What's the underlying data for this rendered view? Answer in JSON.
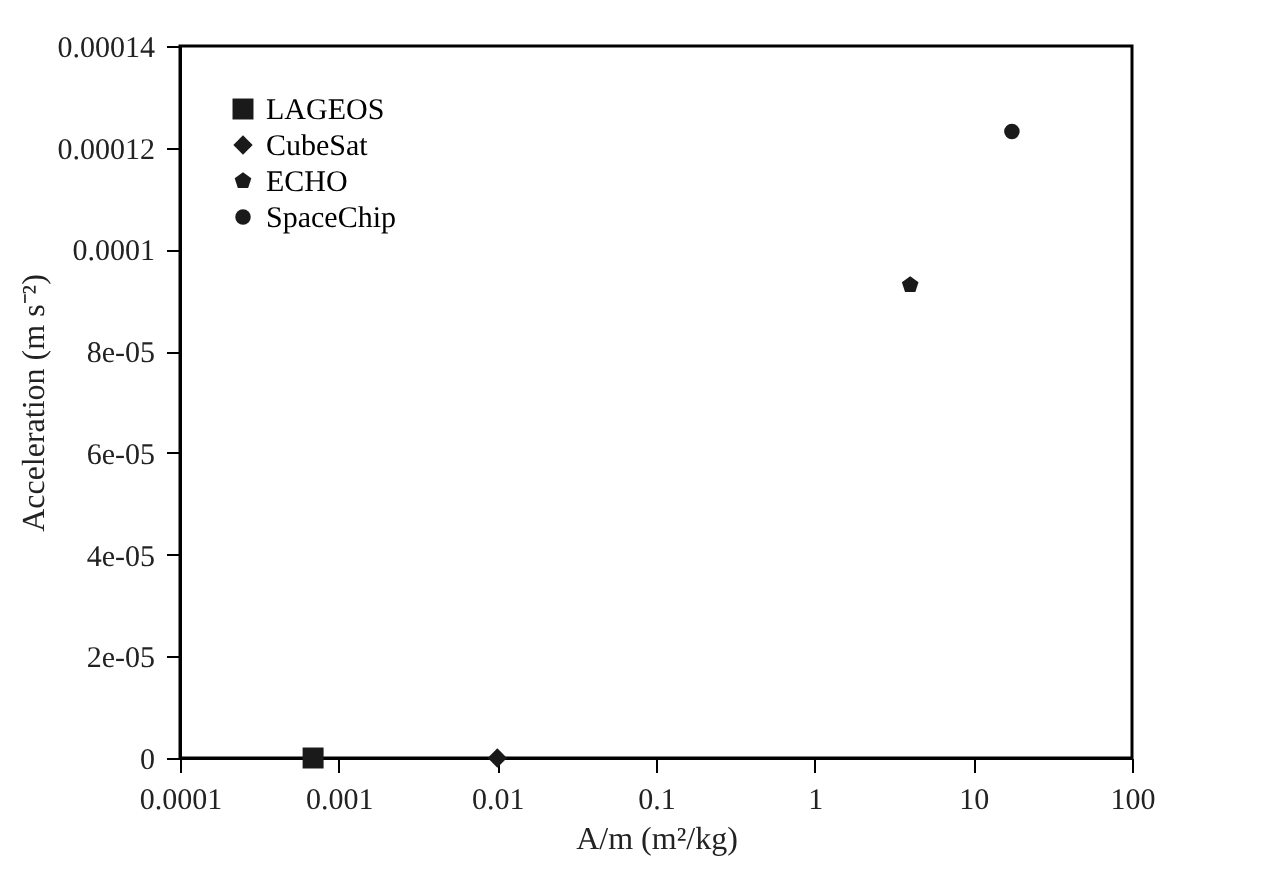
{
  "chart_data": {
    "type": "scatter",
    "xlabel": "A/m (m²/kg)",
    "ylabel": "Acceleration (m s⁻²)",
    "log": "x",
    "xlim": [
      0.0001,
      100
    ],
    "xticks": [
      0.0001,
      0.001,
      0.01,
      0.1,
      1,
      10,
      100
    ],
    "ylim": [
      0,
      0.00014
    ],
    "yticks": [
      0,
      {
        "value": 2e-05,
        "label": "2e-05"
      },
      {
        "value": 4e-05,
        "label": "4e-05"
      },
      {
        "value": 6e-05,
        "label": "6e-05"
      },
      {
        "value": 8e-05,
        "label": "8e-05"
      },
      0.0001,
      0.00012,
      0.00014
    ],
    "grid": false,
    "legend": "top left",
    "series": [
      {
        "name": "LAGEOS",
        "color": "#1a1a1a",
        "marker": "square",
        "x": [
          0.00069
        ],
        "values": [
          0
        ]
      },
      {
        "name": "CubeSat",
        "color": "#1a1a1a",
        "marker": "diamond",
        "x": [
          0.01
        ],
        "values": [
          0
        ]
      },
      {
        "name": "ECHO",
        "color": "#1a1a1a",
        "x": [
          4.0
        ],
        "values": [
          9.3e-05
        ]
      },
      {
        "name": "SpaceChip",
        "color": "#1a1a1a",
        "marker": "circle",
        "x": [
          17.5
        ],
        "values": [
          0.0001232
        ]
      }
    ]
  }
}
